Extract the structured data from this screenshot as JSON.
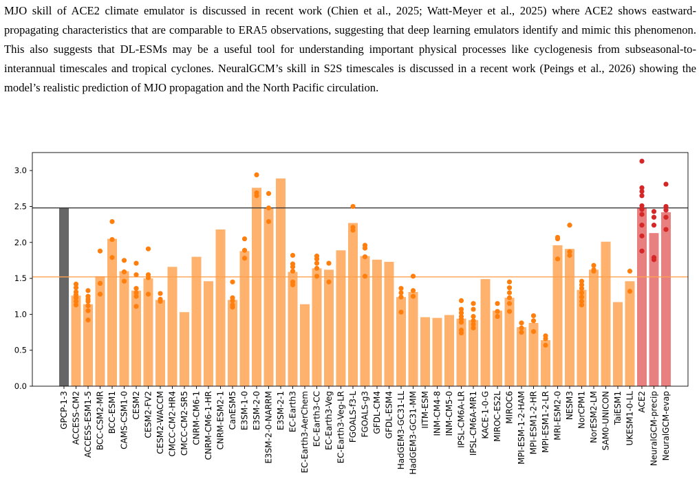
{
  "paragraph": "MJO skill of ACE2 climate emulator is discussed in recent work (Chien et al., 2025; Watt-Meyer et al., 2025) where ACE2 shows eastward-propagating characteristics that are comparable to ERA5 observations, suggesting that deep learning emulators identify and mimic this phenomenon. This also suggests that DL-ESMs may be a useful tool for understanding important physical processes like cyclogenesis from subseasonal-to-interannual timescales and tropical cyclones. NeuralGCM’s skill in S2S timescales is discussed in a recent work (Peings et al., 2026) showing the model’s realistic prediction of MJO propagation and the North Pacific circulation.",
  "colors": {
    "observation_bar": "#666666",
    "model_bar": "#ffb26e",
    "model_dot": "#ff7f0e",
    "ml_bar": "#e88080",
    "ml_dot": "#d62728",
    "obs_line": "#333333",
    "mean_line": "#ffa04d"
  },
  "chart_data": {
    "type": "bar",
    "ylim": [
      0,
      3.25
    ],
    "yticks": [
      "0.0",
      "0.5",
      "1.0",
      "1.5",
      "2.0",
      "2.5",
      "3.0"
    ],
    "reference_lines": [
      {
        "label": "",
        "value": 2.48,
        "color": "#333333"
      },
      {
        "label": "",
        "value": 1.52,
        "color": "#ffa04d"
      }
    ],
    "bars": [
      {
        "label": "GPCP-1-3",
        "value": 2.48,
        "group": "obs",
        "members": []
      },
      {
        "label": "ACCESS-CM2",
        "value": 1.26,
        "group": "model",
        "members": [
          1.42,
          1.37,
          1.31,
          1.27,
          1.23,
          1.18,
          1.13
        ]
      },
      {
        "label": "ACCESS-ESM1-5",
        "value": 1.14,
        "group": "model",
        "members": [
          1.33,
          1.25,
          1.21,
          1.18,
          1.12,
          1.05,
          0.92
        ]
      },
      {
        "label": "BCC-CSM2-MR",
        "value": 1.53,
        "group": "model",
        "members": [
          1.88,
          1.43,
          1.28
        ]
      },
      {
        "label": "BCC-ESM1",
        "value": 2.05,
        "group": "model",
        "members": [
          2.29,
          2.04,
          1.79
        ]
      },
      {
        "label": "CAMS-CSM1-0",
        "value": 1.6,
        "group": "model",
        "members": [
          1.75,
          1.59,
          1.46
        ]
      },
      {
        "label": "CESM2",
        "value": 1.33,
        "group": "model",
        "members": [
          1.71,
          1.55,
          1.36,
          1.3,
          1.25,
          1.11
        ]
      },
      {
        "label": "CESM2-FV2",
        "value": 1.5,
        "group": "model",
        "members": [
          1.91,
          1.55,
          1.51,
          1.28
        ]
      },
      {
        "label": "CESM2-WACCM",
        "value": 1.2,
        "group": "model",
        "members": [
          1.29,
          1.21,
          1.18
        ]
      },
      {
        "label": "CMCC-CM2-HR4",
        "value": 1.66,
        "group": "model",
        "members": []
      },
      {
        "label": "CMCC-CM2-SR5",
        "value": 1.03,
        "group": "model",
        "members": []
      },
      {
        "label": "CNRM-CM6-1",
        "value": 1.8,
        "group": "model",
        "members": []
      },
      {
        "label": "CNRM-CM6-1-HR",
        "value": 1.46,
        "group": "model",
        "members": []
      },
      {
        "label": "CNRM-ESM2-1",
        "value": 2.18,
        "group": "model",
        "members": []
      },
      {
        "label": "CanESM5",
        "value": 1.2,
        "group": "model",
        "members": [
          1.45,
          1.23,
          1.19,
          1.13,
          1.1
        ]
      },
      {
        "label": "E3SM-1-0",
        "value": 1.88,
        "group": "model",
        "members": [
          2.05,
          1.89,
          1.78
        ]
      },
      {
        "label": "E3SM-2-0",
        "value": 2.76,
        "group": "model",
        "members": [
          2.94,
          2.69,
          2.65
        ]
      },
      {
        "label": "E3SM-2-0-NARRM",
        "value": 2.48,
        "group": "model",
        "members": [
          2.68,
          2.48,
          2.29
        ]
      },
      {
        "label": "E3SM-2-1",
        "value": 2.89,
        "group": "model",
        "members": []
      },
      {
        "label": "EC-Earth3",
        "value": 1.59,
        "group": "model",
        "members": [
          1.82,
          1.7,
          1.66,
          1.6,
          1.45,
          1.41
        ]
      },
      {
        "label": "EC-Earth3-AerChem",
        "value": 1.14,
        "group": "model",
        "members": []
      },
      {
        "label": "EC-Earth3-CC",
        "value": 1.64,
        "group": "model",
        "members": [
          1.81,
          1.77,
          1.71,
          1.64,
          1.53
        ]
      },
      {
        "label": "EC-Earth3-Veg",
        "value": 1.62,
        "group": "model",
        "members": [
          1.71,
          1.45
        ]
      },
      {
        "label": "EC-Earth3-Veg-LR",
        "value": 1.89,
        "group": "model",
        "members": []
      },
      {
        "label": "FGOALS-f3-L",
        "value": 2.27,
        "group": "model",
        "members": [
          2.5,
          2.21,
          2.17
        ]
      },
      {
        "label": "FGOALS-g3",
        "value": 1.81,
        "group": "model",
        "members": [
          1.96,
          1.92,
          1.8,
          1.53
        ]
      },
      {
        "label": "GFDL-CM4",
        "value": 1.76,
        "group": "model",
        "members": []
      },
      {
        "label": "GFDL-ESM4",
        "value": 1.73,
        "group": "model",
        "members": []
      },
      {
        "label": "HadGEM3-GC31-LL",
        "value": 1.24,
        "group": "model",
        "members": [
          1.36,
          1.3,
          1.24,
          1.03
        ]
      },
      {
        "label": "HadGEM3-GC31-MM",
        "value": 1.31,
        "group": "model",
        "members": [
          1.53,
          1.33,
          1.25
        ]
      },
      {
        "label": "IITM-ESM",
        "value": 0.96,
        "group": "model",
        "members": []
      },
      {
        "label": "INM-CM4-8",
        "value": 0.95,
        "group": "model",
        "members": []
      },
      {
        "label": "INM-CM5-0",
        "value": 0.99,
        "group": "model",
        "members": []
      },
      {
        "label": "IPSL-CM6A-LR",
        "value": 0.94,
        "group": "model",
        "members": [
          1.19,
          1.07,
          1.02,
          0.97,
          0.93,
          0.89,
          0.78,
          0.74
        ]
      },
      {
        "label": "IPSL-CM6A-MR1",
        "value": 0.92,
        "group": "model",
        "members": [
          1.15,
          1.07,
          0.97,
          0.91,
          0.86,
          0.81
        ]
      },
      {
        "label": "KACE-1-0-G",
        "value": 1.49,
        "group": "model",
        "members": []
      },
      {
        "label": "MIROC-ES2L",
        "value": 1.05,
        "group": "model",
        "members": [
          1.15,
          1.04,
          0.97
        ]
      },
      {
        "label": "MIROC6",
        "value": 1.23,
        "group": "model",
        "members": [
          1.45,
          1.37,
          1.3,
          1.23,
          1.15,
          1.04
        ]
      },
      {
        "label": "MPI-ESM-1-2-HAM",
        "value": 0.82,
        "group": "model",
        "members": [
          0.88,
          0.81,
          0.75
        ]
      },
      {
        "label": "MPI-ESM1-2-HR",
        "value": 0.88,
        "group": "model",
        "members": [
          0.98,
          0.91,
          0.76
        ]
      },
      {
        "label": "MPI-ESM1-2-LR",
        "value": 0.64,
        "group": "model",
        "members": [
          0.7,
          0.66,
          0.57
        ]
      },
      {
        "label": "MRI-ESM2-0",
        "value": 1.96,
        "group": "model",
        "members": [
          2.07,
          2.05,
          1.77
        ]
      },
      {
        "label": "NESM3",
        "value": 1.91,
        "group": "model",
        "members": [
          2.24,
          1.87,
          1.82
        ]
      },
      {
        "label": "NorCPM1",
        "value": 1.34,
        "group": "model",
        "members": [
          1.46,
          1.41,
          1.36,
          1.3,
          1.24,
          1.18,
          1.13
        ]
      },
      {
        "label": "NorESM2-LM",
        "value": 1.62,
        "group": "model",
        "members": [
          1.68,
          1.62,
          1.6
        ]
      },
      {
        "label": "SAM0-UNICON",
        "value": 2.01,
        "group": "model",
        "members": []
      },
      {
        "label": "TaiESM1",
        "value": 1.17,
        "group": "model",
        "members": []
      },
      {
        "label": "UKESM1-0-LL",
        "value": 1.46,
        "group": "model",
        "members": [
          1.6,
          1.32
        ]
      },
      {
        "label": "ACE2",
        "value": 2.48,
        "group": "ml",
        "members": [
          3.13,
          2.76,
          2.71,
          2.65,
          2.51,
          2.46,
          2.39,
          2.24,
          2.09,
          1.88
        ]
      },
      {
        "label": "NeuralGCM-precip",
        "value": 2.13,
        "group": "ml",
        "members": [
          2.43,
          2.35,
          2.24,
          1.79,
          1.76
        ]
      },
      {
        "label": "NeuralGCM-evap",
        "value": 2.42,
        "group": "ml",
        "members": [
          2.81,
          2.5,
          2.45,
          2.35,
          2.18
        ]
      }
    ]
  }
}
